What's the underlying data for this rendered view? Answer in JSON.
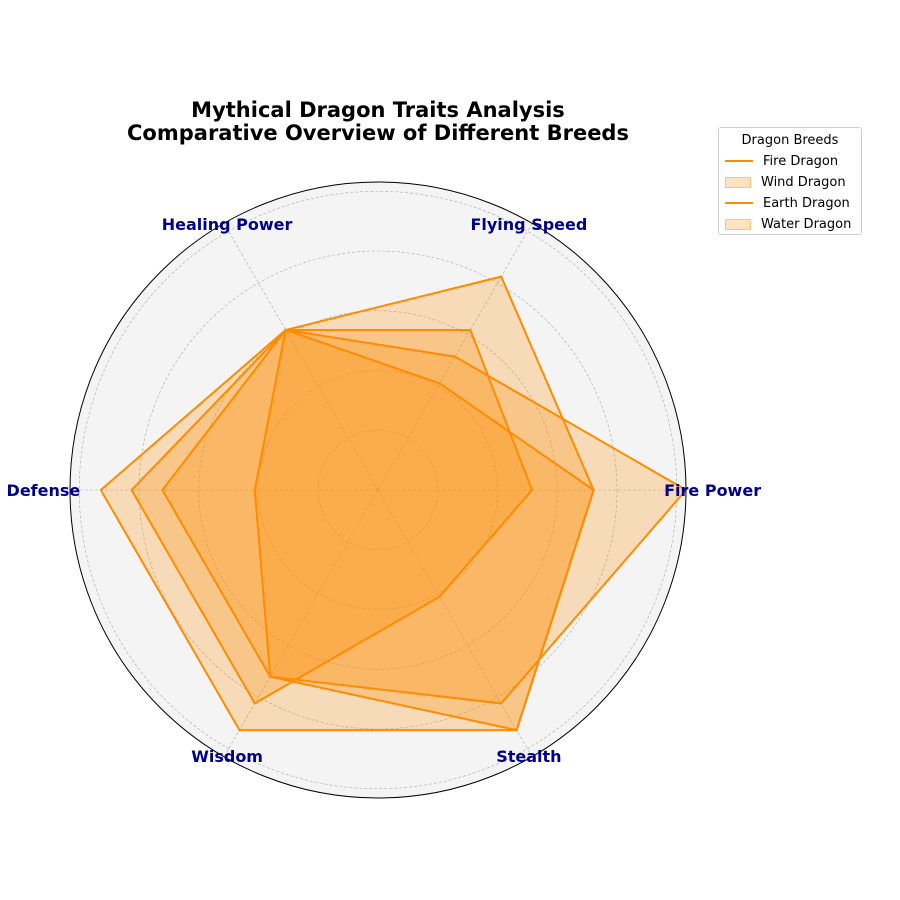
{
  "chart_data": {
    "type": "radar",
    "title": "Mythical Dragon Traits Analysis",
    "subtitle": "Comparative Overview of Different Breeds",
    "categories": [
      "Fire Power",
      "Flying Speed",
      "Healing Power",
      "Defense",
      "Wisdom",
      "Stealth"
    ],
    "rlim": [
      0,
      10
    ],
    "rticks": [
      2,
      4,
      6,
      8,
      10
    ],
    "grid": true,
    "legend_title": "Dragon Breeds",
    "legend_placement": "upper-right-outside",
    "series": [
      {
        "name": "Fire Dragon",
        "values": [
          10,
          5,
          6,
          7,
          7,
          8
        ],
        "legend_style": "line"
      },
      {
        "name": "Wind Dragon",
        "values": [
          7,
          8,
          6,
          9,
          9,
          9
        ],
        "legend_style": "patch"
      },
      {
        "name": "Earth Dragon",
        "values": [
          5,
          6,
          6,
          8,
          8,
          4
        ],
        "legend_style": "line"
      },
      {
        "name": "Water Dragon",
        "values": [
          7,
          4,
          6,
          4,
          7,
          9
        ],
        "legend_style": "patch"
      }
    ],
    "colors": {
      "series_line": "#ff8c00",
      "series_fill": "#ff8c00",
      "plot_background": "#f4f4f4",
      "axis_label": "#00008b",
      "grid": "#aaaaaa"
    }
  }
}
